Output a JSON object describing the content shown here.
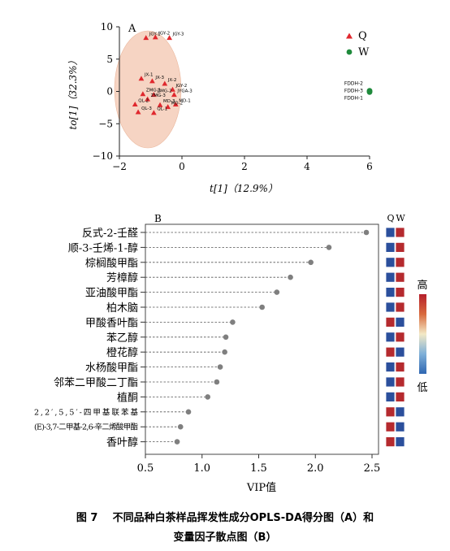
{
  "chart_data": [
    {
      "type": "scatter",
      "panel_label": "A",
      "xlabel": "t[1]（12.9%）",
      "ylabel": "to[1]（32.3%）",
      "xlim": [
        -2,
        6
      ],
      "ylim": [
        -10,
        10
      ],
      "x_ticks": [
        "−2",
        "0",
        "2",
        "4",
        "6"
      ],
      "y_ticks": [
        "−10",
        "−5",
        "0",
        "5",
        "10"
      ],
      "legend_position": "top-right",
      "series": [
        {
          "name": "Q",
          "marker": "triangle",
          "color": "#e0282e",
          "points": [
            {
              "label": "JGY-2",
              "x": -0.85,
              "y": 8.4
            },
            {
              "label": "JGY-3",
              "x": -0.4,
              "y": 8.3
            },
            {
              "label": "JGY-1",
              "x": -1.15,
              "y": 8.3
            },
            {
              "label": "JX-1",
              "x": -1.3,
              "y": 2.0
            },
            {
              "label": "JX-3",
              "x": -0.95,
              "y": 1.6
            },
            {
              "label": "JX-2",
              "x": -0.55,
              "y": 1.2
            },
            {
              "label": "JGY-2",
              "x": -0.3,
              "y": 0.3
            },
            {
              "label": "ZMG-1",
              "x": -1.25,
              "y": -0.4
            },
            {
              "label": "ZMG-2",
              "x": -0.9,
              "y": -0.5
            },
            {
              "label": "JYGA-3",
              "x": -0.25,
              "y": -0.5
            },
            {
              "label": "ZMG-3",
              "x": -1.1,
              "y": -1.2
            },
            {
              "label": "QL-2",
              "x": -1.5,
              "y": -2.0
            },
            {
              "label": "MD-1",
              "x": -0.2,
              "y": -2.0
            },
            {
              "label": "MD-3",
              "x": -0.7,
              "y": -2.1
            },
            {
              "label": "MD-2",
              "x": -0.45,
              "y": -2.4
            },
            {
              "label": "QL-3",
              "x": -1.4,
              "y": -3.2
            },
            {
              "label": "QL-1",
              "x": -0.9,
              "y": -3.3
            }
          ]
        },
        {
          "name": "W",
          "marker": "circle",
          "color": "#1f8a3c",
          "points": [
            {
              "label": "FDDH-2",
              "x": 6.0,
              "y": 0.1
            },
            {
              "label": "FDDH-3",
              "x": 6.0,
              "y": 0.0
            },
            {
              "label": "FDDH-1",
              "x": 6.0,
              "y": -0.1
            }
          ]
        }
      ]
    },
    {
      "type": "dot",
      "panel_label": "B",
      "xlabel": "VIP值",
      "xlim": [
        0.5,
        2.5
      ],
      "x_ticks": [
        "0.5",
        "1.0",
        "1.5",
        "2.0",
        "2.5"
      ],
      "heat_legend": {
        "high": "高",
        "low": "低"
      },
      "group_columns": [
        "Q",
        "W"
      ],
      "rows": [
        {
          "compound": "反式-2-壬醛",
          "vip": 2.45,
          "Q": "low",
          "W": "high"
        },
        {
          "compound": "顺-3-壬烯-1-醇",
          "vip": 2.12,
          "Q": "low",
          "W": "high"
        },
        {
          "compound": "棕榈酸甲酯",
          "vip": 1.96,
          "Q": "low",
          "W": "high"
        },
        {
          "compound": "芳樟醇",
          "vip": 1.78,
          "Q": "low",
          "W": "high"
        },
        {
          "compound": "亚油酸甲酯",
          "vip": 1.66,
          "Q": "low",
          "W": "high"
        },
        {
          "compound": "柏木脑",
          "vip": 1.53,
          "Q": "low",
          "W": "high"
        },
        {
          "compound": "甲酸香叶酯",
          "vip": 1.27,
          "Q": "high",
          "W": "low"
        },
        {
          "compound": "苯乙醇",
          "vip": 1.21,
          "Q": "low",
          "W": "high"
        },
        {
          "compound": "橙花醇",
          "vip": 1.2,
          "Q": "high",
          "W": "low"
        },
        {
          "compound": "水杨酸甲酯",
          "vip": 1.16,
          "Q": "low",
          "W": "high"
        },
        {
          "compound": "邻苯二甲酸二丁酯",
          "vip": 1.13,
          "Q": "low",
          "W": "high"
        },
        {
          "compound": "植酮",
          "vip": 1.05,
          "Q": "low",
          "W": "high"
        },
        {
          "compound": "2,2′,5,5′-四甲基联苯基",
          "vip": 0.88,
          "Q": "high",
          "W": "low"
        },
        {
          "compound": "(E)-3,7-二甲基-2,6-辛二烯酸甲酯",
          "vip": 0.81,
          "Q": "high",
          "W": "low"
        },
        {
          "compound": "香叶醇",
          "vip": 0.78,
          "Q": "high",
          "W": "low"
        }
      ]
    }
  ],
  "caption": {
    "line1": "图 7    不同品种白茶样品挥发性成分OPLS-DA得分图（A）和",
    "line2": "变量因子散点图（B）"
  },
  "colors": {
    "q_red": "#e0282e",
    "w_green": "#1f8a3c",
    "high": "#b52a2e",
    "low": "#2b4f9c",
    "dot": "#7f7f7f",
    "ellipse": "#f6d4c3"
  }
}
